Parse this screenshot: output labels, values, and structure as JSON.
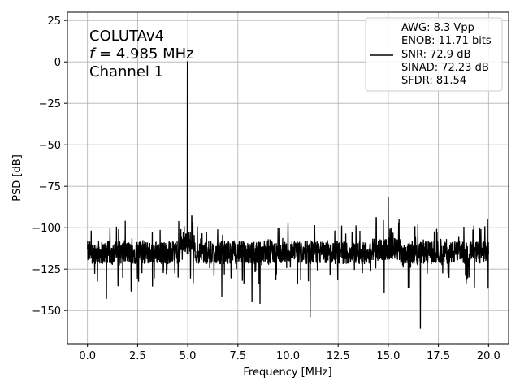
{
  "chart_data": {
    "type": "line",
    "xlabel": "Frequency [MHz]",
    "ylabel": "PSD [dB]",
    "xlim": [
      -1.0,
      21.0
    ],
    "ylim": [
      -170,
      30
    ],
    "xticks": [
      0.0,
      2.5,
      5.0,
      7.5,
      10.0,
      12.5,
      15.0,
      17.5,
      20.0
    ],
    "xtick_labels": [
      "0.0",
      "2.5",
      "5.0",
      "7.5",
      "10.0",
      "12.5",
      "15.0",
      "17.5",
      "20.0"
    ],
    "yticks": [
      25,
      0,
      -25,
      -50,
      -75,
      -100,
      -125,
      -150
    ],
    "ytick_labels": [
      "25",
      "0",
      "−25",
      "−50",
      "−75",
      "−100",
      "−125",
      "−150"
    ],
    "grid": true,
    "line_color": "#000000",
    "annotation": {
      "line1": "COLUTAv4",
      "line2_var": "f",
      "line2_rest": " = 4.985 MHz",
      "line3": "Channel 1"
    },
    "legend": {
      "placement": "top-right",
      "lines": [
        "AWG: 8.3 Vpp",
        "ENOB: 11.71 bits",
        "SNR: 72.9 dB",
        "SINAD: 72.23 dB",
        "SFDR: 81.54"
      ]
    },
    "series": [
      {
        "noise_floor_db": -115,
        "peaks": [
          {
            "x": 4.985,
            "y": 0
          },
          {
            "x": 15.0,
            "y": -81.5
          },
          {
            "x": 19.95,
            "y": -95
          },
          {
            "x": 10.0,
            "y": -97
          },
          {
            "x": 14.4,
            "y": -94
          },
          {
            "x": 5.2,
            "y": -93
          },
          {
            "x": 4.55,
            "y": -96
          }
        ],
        "dips": [
          {
            "x": 11.1,
            "y": -154
          },
          {
            "x": 16.6,
            "y": -161
          },
          {
            "x": 8.6,
            "y": -146
          },
          {
            "x": 0.95,
            "y": -143
          },
          {
            "x": 8.2,
            "y": -145
          },
          {
            "x": 6.7,
            "y": -142
          }
        ]
      }
    ]
  }
}
